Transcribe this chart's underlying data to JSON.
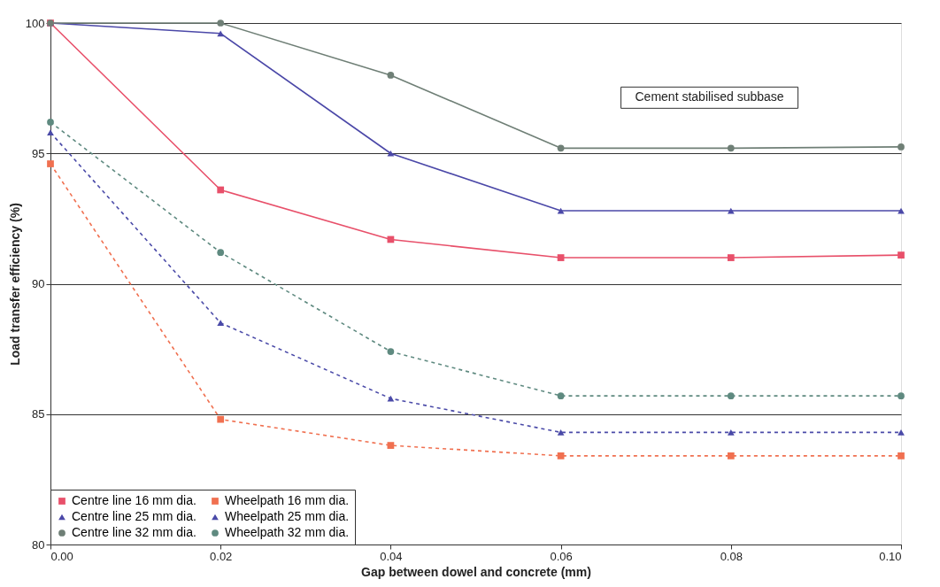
{
  "chart_data": {
    "type": "line",
    "xlabel": "Gap between dowel and concrete (mm)",
    "ylabel": "Load transfer efficiency (%)",
    "x": [
      0,
      0.02,
      0.04,
      0.06,
      0.08,
      0.1
    ],
    "xlim": [
      0,
      0.1
    ],
    "xticks": [
      {
        "value": 0,
        "label": "0.00"
      },
      {
        "value": 0.02,
        "label": "0.02"
      },
      {
        "value": 0.04,
        "label": "0.04"
      },
      {
        "value": 0.06,
        "label": "0.06"
      },
      {
        "value": 0.08,
        "label": "0.08"
      },
      {
        "value": 0.1,
        "label": "0.10"
      }
    ],
    "ylim": [
      80,
      100
    ],
    "yticks": [
      80,
      85,
      90,
      95,
      100
    ],
    "grid": "y",
    "legend": "bottom left",
    "annotations": [
      "Cement stabilised subbase"
    ],
    "series": [
      {
        "name": "Centre line 16 mm dia.",
        "color": "#e8506a",
        "marker": "square",
        "line_style": "solid",
        "values": [
          100,
          93.6,
          91.7,
          91.0,
          91.0,
          91.1
        ]
      },
      {
        "name": "Centre line 25 mm dia.",
        "color": "#4b48a8",
        "marker": "triangle",
        "line_style": "solid",
        "values": [
          100,
          99.6,
          95.0,
          92.8,
          92.8,
          92.8
        ]
      },
      {
        "name": "Centre line 32 mm dia.",
        "color": "#6f7f76",
        "marker": "circle",
        "line_style": "solid",
        "values": [
          100,
          100,
          98.0,
          95.2,
          95.2,
          95.25
        ]
      },
      {
        "name": "Wheelpath 16 mm dia.",
        "color": "#f07050",
        "marker": "square",
        "line_style": "dashed",
        "values": [
          94.6,
          84.8,
          83.8,
          83.4,
          83.4,
          83.4
        ]
      },
      {
        "name": "Wheelpath 25 mm dia.",
        "color": "#4a4aa8",
        "marker": "triangle",
        "line_style": "dashed",
        "values": [
          95.8,
          88.5,
          85.6,
          84.3,
          84.3,
          84.3
        ]
      },
      {
        "name": "Wheelpath 32 mm dia.",
        "color": "#5f8a80",
        "marker": "circle",
        "line_style": "dashed",
        "values": [
          96.2,
          91.2,
          87.4,
          85.7,
          85.7,
          85.7
        ]
      }
    ]
  }
}
